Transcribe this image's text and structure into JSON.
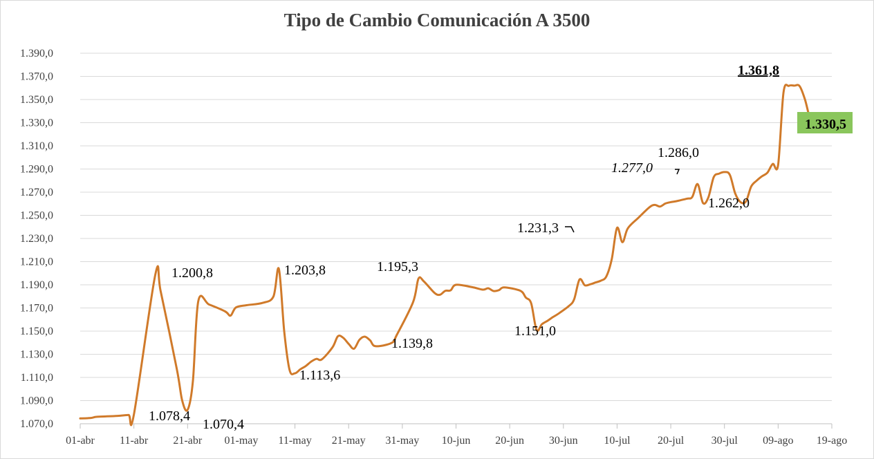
{
  "chart_data": {
    "type": "line",
    "title": "Tipo de Cambio Comunicación A 3500",
    "xlabel": "",
    "ylabel": "",
    "x_range": [
      "2024-04-01",
      "2024-08-19"
    ],
    "ylim": [
      1070.0,
      1390.0
    ],
    "grid": true,
    "legend": "none",
    "y_ticks": [
      "1.070,0",
      "1.090,0",
      "1.110,0",
      "1.130,0",
      "1.150,0",
      "1.170,0",
      "1.190,0",
      "1.210,0",
      "1.230,0",
      "1.250,0",
      "1.270,0",
      "1.290,0",
      "1.310,0",
      "1.330,0",
      "1.350,0",
      "1.370,0",
      "1.390,0"
    ],
    "x_ticks": [
      {
        "date": "2024-04-01",
        "label": "01-abr"
      },
      {
        "date": "2024-04-11",
        "label": "11-abr"
      },
      {
        "date": "2024-04-21",
        "label": "21-abr"
      },
      {
        "date": "2024-05-01",
        "label": "01-may"
      },
      {
        "date": "2024-05-11",
        "label": "11-may"
      },
      {
        "date": "2024-05-21",
        "label": "21-may"
      },
      {
        "date": "2024-05-31",
        "label": "31-may"
      },
      {
        "date": "2024-06-10",
        "label": "10-jun"
      },
      {
        "date": "2024-06-20",
        "label": "20-jun"
      },
      {
        "date": "2024-06-30",
        "label": "30-jun"
      },
      {
        "date": "2024-07-10",
        "label": "10-jul"
      },
      {
        "date": "2024-07-20",
        "label": "20-jul"
      },
      {
        "date": "2024-07-30",
        "label": "30-jul"
      },
      {
        "date": "2024-08-09",
        "label": "09-ago"
      },
      {
        "date": "2024-08-19",
        "label": "19-ago"
      }
    ],
    "series": [
      {
        "color": "#d07a2a",
        "points": [
          [
            "2024-04-01",
            1074.6
          ],
          [
            "2024-04-03",
            1075.0
          ],
          [
            "2024-04-04",
            1076.0
          ],
          [
            "2024-04-06",
            1076.4
          ],
          [
            "2024-04-08",
            1076.8
          ],
          [
            "2024-04-10",
            1077.6
          ],
          [
            "2024-04-11",
            1077.8
          ],
          [
            "2024-04-15",
            1199.0
          ],
          [
            "2024-04-16",
            1184.0
          ],
          [
            "2024-04-19",
            1117.0
          ],
          [
            "2024-04-20",
            1090.0
          ],
          [
            "2024-04-21",
            1082.0
          ],
          [
            "2024-04-22",
            1107.0
          ],
          [
            "2024-04-23",
            1176.0
          ],
          [
            "2024-04-25",
            1173.0
          ],
          [
            "2024-04-28",
            1167.0
          ],
          [
            "2024-04-29",
            1163.4
          ],
          [
            "2024-04-30",
            1170.4
          ],
          [
            "2024-05-02",
            1172.4
          ],
          [
            "2024-05-05",
            1174.4
          ],
          [
            "2024-05-07",
            1180.0
          ],
          [
            "2024-05-08",
            1203.8
          ],
          [
            "2024-05-09",
            1150.0
          ],
          [
            "2024-05-10",
            1116.4
          ],
          [
            "2024-05-11",
            1113.6
          ],
          [
            "2024-05-12",
            1117.0
          ],
          [
            "2024-05-13",
            1119.8
          ],
          [
            "2024-05-14",
            1123.6
          ],
          [
            "2024-05-15",
            1126.0
          ],
          [
            "2024-05-16",
            1125.6
          ],
          [
            "2024-05-18",
            1136.0
          ],
          [
            "2024-05-19",
            1145.6
          ],
          [
            "2024-05-20",
            1144.2
          ],
          [
            "2024-05-21",
            1139.0
          ],
          [
            "2024-05-22",
            1134.8
          ],
          [
            "2024-05-23",
            1142.4
          ],
          [
            "2024-05-24",
            1145.2
          ],
          [
            "2024-05-25",
            1142.0
          ],
          [
            "2024-05-26",
            1137.0
          ],
          [
            "2024-05-29",
            1139.8
          ],
          [
            "2024-05-30",
            1147.0
          ],
          [
            "2024-06-02",
            1175.0
          ],
          [
            "2024-06-03",
            1195.3
          ],
          [
            "2024-06-04",
            1193.0
          ],
          [
            "2024-06-06",
            1183.0
          ],
          [
            "2024-06-07",
            1181.4
          ],
          [
            "2024-06-08",
            1184.8
          ],
          [
            "2024-06-09",
            1185.2
          ],
          [
            "2024-06-10",
            1190.0
          ],
          [
            "2024-06-13",
            1188.0
          ],
          [
            "2024-06-15",
            1185.8
          ],
          [
            "2024-06-16",
            1187.0
          ],
          [
            "2024-06-17",
            1184.6
          ],
          [
            "2024-06-18",
            1185.4
          ],
          [
            "2024-06-19",
            1187.8
          ],
          [
            "2024-06-22",
            1184.8
          ],
          [
            "2024-06-23",
            1179.0
          ],
          [
            "2024-06-24",
            1174.0
          ],
          [
            "2024-06-25",
            1151.0
          ],
          [
            "2024-06-26",
            1156.0
          ],
          [
            "2024-06-27",
            1158.8
          ],
          [
            "2024-06-28",
            1162.0
          ],
          [
            "2024-06-29",
            1164.8
          ],
          [
            "2024-07-01",
            1171.6
          ],
          [
            "2024-07-02",
            1177.4
          ],
          [
            "2024-07-03",
            1194.6
          ],
          [
            "2024-07-04",
            1189.6
          ],
          [
            "2024-07-05",
            1190.4
          ],
          [
            "2024-07-06",
            1192.0
          ],
          [
            "2024-07-07",
            1193.6
          ],
          [
            "2024-07-08",
            1197.2
          ],
          [
            "2024-07-09",
            1212.0
          ],
          [
            "2024-07-10",
            1239.2
          ],
          [
            "2024-07-11",
            1226.8
          ],
          [
            "2024-07-12",
            1238.8
          ],
          [
            "2024-07-14",
            1248.0
          ],
          [
            "2024-07-16",
            1256.8
          ],
          [
            "2024-07-17",
            1259.0
          ],
          [
            "2024-07-18",
            1257.6
          ],
          [
            "2024-07-19",
            1260.2
          ],
          [
            "2024-07-20",
            1261.4
          ],
          [
            "2024-07-21",
            1262.2
          ],
          [
            "2024-07-23",
            1264.4
          ],
          [
            "2024-07-24",
            1265.8
          ],
          [
            "2024-07-25",
            1277.0
          ],
          [
            "2024-07-26",
            1260.6
          ],
          [
            "2024-07-27",
            1265.4
          ],
          [
            "2024-07-28",
            1283.0
          ],
          [
            "2024-07-29",
            1286.0
          ],
          [
            "2024-07-30",
            1287.4
          ],
          [
            "2024-07-31",
            1285.0
          ],
          [
            "2024-08-01",
            1269.0
          ],
          [
            "2024-08-02",
            1261.4
          ],
          [
            "2024-08-03",
            1262.0
          ],
          [
            "2024-08-04",
            1275.0
          ],
          [
            "2024-08-05",
            1280.0
          ],
          [
            "2024-08-06",
            1283.8
          ],
          [
            "2024-08-07",
            1286.8
          ],
          [
            "2024-08-08",
            1294.4
          ],
          [
            "2024-08-09",
            1293.8
          ],
          [
            "2024-08-10",
            1356.0
          ],
          [
            "2024-08-11",
            1361.8
          ],
          [
            "2024-08-12",
            1362.0
          ],
          [
            "2024-08-13",
            1361.6
          ],
          [
            "2024-08-14",
            1350.0
          ],
          [
            "2024-08-15",
            1333.0
          ],
          [
            "2024-08-16",
            1330.2
          ],
          [
            "2024-08-17",
            1330.2
          ],
          [
            "2024-08-18",
            1330.4
          ],
          [
            "2024-08-19",
            1330.5
          ]
        ]
      }
    ],
    "annotations": [
      {
        "text": "1.200,8",
        "style": "normal"
      },
      {
        "text": "1.078,4",
        "style": "normal"
      },
      {
        "text": "1.070,4",
        "style": "normal"
      },
      {
        "text": "1.203,8",
        "style": "normal"
      },
      {
        "text": "1.113,6",
        "style": "normal"
      },
      {
        "text": "1.195,3",
        "style": "normal"
      },
      {
        "text": "1.139,8",
        "style": "normal"
      },
      {
        "text": "1.151,0",
        "style": "normal"
      },
      {
        "text": "1.231,3",
        "style": "normal"
      },
      {
        "text": "1.277,0",
        "style": "italic"
      },
      {
        "text": "1.286,0",
        "style": "normal"
      },
      {
        "text": "1.262,0",
        "style": "normal"
      },
      {
        "text": "1.361,8",
        "style": "bold-underline"
      },
      {
        "text": "1.330,5",
        "style": "bold-boxed",
        "box_color": "#8ac65c"
      }
    ]
  }
}
